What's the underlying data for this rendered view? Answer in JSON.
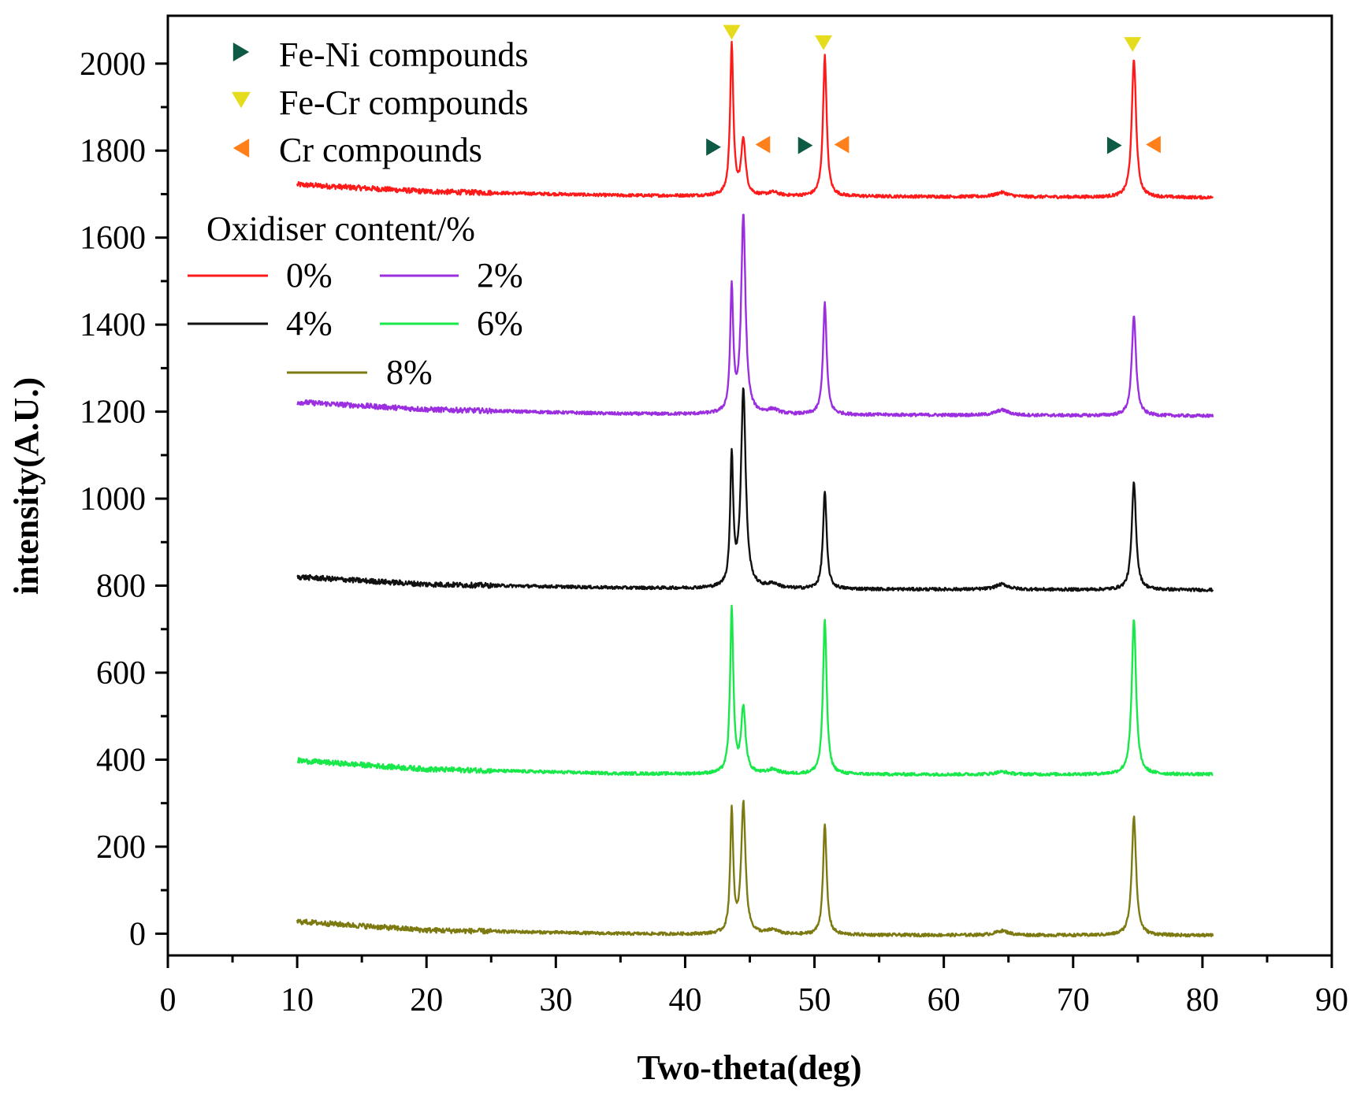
{
  "chart_data": {
    "type": "line",
    "xlabel": "Two-theta(deg)",
    "ylabel": "intensity(A.U.)",
    "xlim": [
      0,
      90
    ],
    "ylim": [
      -50,
      2110
    ],
    "x_ticks": [
      0,
      10,
      20,
      30,
      40,
      50,
      60,
      70,
      80,
      90
    ],
    "y_ticks": [
      0,
      200,
      400,
      600,
      800,
      1000,
      1200,
      1400,
      1600,
      1800,
      2000
    ],
    "x_range": [
      10,
      80.8
    ],
    "legend_title": "Oxidiser content/%",
    "legend_placement": "top-left",
    "series": [
      {
        "name": "0%",
        "color": "#ff1a1a",
        "baseline": [
          [
            10,
            1722
          ],
          [
            20,
            1706
          ],
          [
            35,
            1697
          ],
          [
            50,
            1695
          ],
          [
            80.8,
            1692
          ]
        ],
        "peaks": [
          [
            43.6,
            345,
            0.15
          ],
          [
            44.5,
            128,
            0.2
          ],
          [
            46.8,
            8,
            0.5
          ],
          [
            50.8,
            322,
            0.17
          ],
          [
            64.5,
            10,
            0.6
          ],
          [
            74.7,
            318,
            0.2
          ]
        ]
      },
      {
        "name": "2%",
        "color": "#9b2fe0",
        "baseline": [
          [
            10,
            1222
          ],
          [
            20,
            1205
          ],
          [
            35,
            1195
          ],
          [
            50,
            1193
          ],
          [
            80.8,
            1190
          ]
        ],
        "peaks": [
          [
            43.6,
            285,
            0.14
          ],
          [
            44.5,
            455,
            0.2
          ],
          [
            46.8,
            10,
            0.5
          ],
          [
            50.8,
            255,
            0.17
          ],
          [
            64.5,
            12,
            0.6
          ],
          [
            74.7,
            228,
            0.2
          ]
        ]
      },
      {
        "name": "4%",
        "color": "#111111",
        "baseline": [
          [
            10,
            820
          ],
          [
            20,
            803
          ],
          [
            35,
            795
          ],
          [
            50,
            792
          ],
          [
            80.8,
            790
          ]
        ],
        "peaks": [
          [
            43.6,
            298,
            0.14
          ],
          [
            44.5,
            455,
            0.22
          ],
          [
            46.8,
            10,
            0.5
          ],
          [
            50.8,
            223,
            0.17
          ],
          [
            64.5,
            12,
            0.6
          ],
          [
            74.7,
            247,
            0.2
          ]
        ]
      },
      {
        "name": "6%",
        "color": "#19e84b",
        "baseline": [
          [
            10,
            398
          ],
          [
            20,
            378
          ],
          [
            35,
            368
          ],
          [
            50,
            366
          ],
          [
            80.8,
            366
          ]
        ],
        "peaks": [
          [
            43.6,
            378,
            0.15
          ],
          [
            44.5,
            150,
            0.2
          ],
          [
            46.8,
            10,
            0.5
          ],
          [
            50.8,
            357,
            0.17
          ],
          [
            64.5,
            6,
            0.6
          ],
          [
            74.7,
            356,
            0.2
          ]
        ]
      },
      {
        "name": "8%",
        "color": "#7d7a12",
        "baseline": [
          [
            10,
            28
          ],
          [
            20,
            8
          ],
          [
            35,
            0
          ],
          [
            50,
            -3
          ],
          [
            80.8,
            -4
          ]
        ],
        "peaks": [
          [
            43.6,
            280,
            0.14
          ],
          [
            44.5,
            300,
            0.2
          ],
          [
            46.8,
            10,
            0.5
          ],
          [
            50.8,
            253,
            0.17
          ],
          [
            64.5,
            10,
            0.6
          ],
          [
            74.7,
            275,
            0.2
          ]
        ]
      }
    ],
    "compound_legend": [
      {
        "label": "Fe-Ni compounds",
        "marker": "right-triangle",
        "color": "#0f5a45"
      },
      {
        "label": "Fe-Cr compounds",
        "marker": "down-triangle",
        "color": "#e6dc1e"
      },
      {
        "label": "Cr compounds",
        "marker": "left-triangle",
        "color": "#ff7f1a"
      }
    ],
    "annotations": [
      {
        "compound": "Fe-Cr compounds",
        "x": 43.6,
        "y": 2072
      },
      {
        "compound": "Fe-Cr compounds",
        "x": 50.7,
        "y": 2048
      },
      {
        "compound": "Fe-Cr compounds",
        "x": 74.6,
        "y": 2044
      },
      {
        "compound": "Fe-Ni compounds",
        "x": 42.2,
        "y": 1808
      },
      {
        "compound": "Fe-Ni compounds",
        "x": 49.3,
        "y": 1812
      },
      {
        "compound": "Fe-Ni compounds",
        "x": 73.2,
        "y": 1812
      },
      {
        "compound": "Cr compounds",
        "x": 46.0,
        "y": 1814
      },
      {
        "compound": "Cr compounds",
        "x": 52.1,
        "y": 1814
      },
      {
        "compound": "Cr compounds",
        "x": 76.2,
        "y": 1814
      }
    ]
  }
}
